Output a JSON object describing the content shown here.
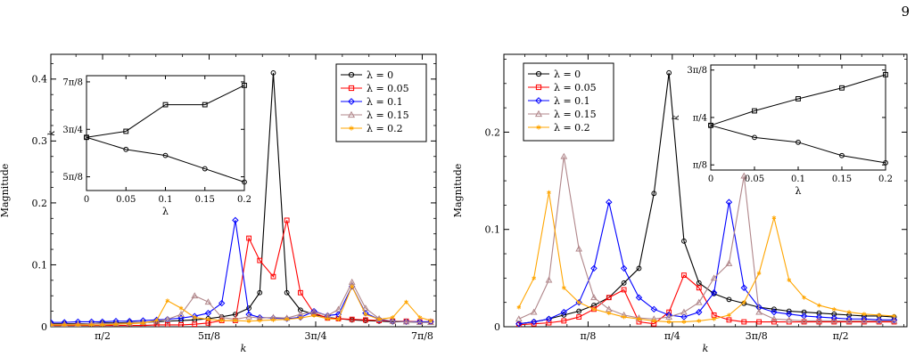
{
  "page": {
    "number": "9"
  },
  "colors": {
    "l0": "#000000",
    "l005": "#ff0000",
    "l01": "#0000ff",
    "l015": "#b0868a",
    "l02": "#ffa500"
  },
  "chart_data": [
    {
      "type": "line",
      "xlabel": "k",
      "ylabel": "Magnitude",
      "xlim": [
        1.38,
        2.8
      ],
      "ylim": [
        0,
        0.44
      ],
      "xticks": [
        {
          "v": 1.5708,
          "label": "π/2"
        },
        {
          "v": 1.9635,
          "label": "5π/8"
        },
        {
          "v": 2.3562,
          "label": "3π/4"
        },
        {
          "v": 2.7489,
          "label": "7π/8"
        }
      ],
      "yticks": [
        {
          "v": 0,
          "label": "0"
        },
        {
          "v": 0.1,
          "label": "0.1"
        },
        {
          "v": 0.2,
          "label": "0.2"
        },
        {
          "v": 0.3,
          "label": "0.3"
        },
        {
          "v": 0.4,
          "label": "0.4"
        }
      ],
      "legend_position": "top-right",
      "series": [
        {
          "name": "λ = 0",
          "color": "#000000",
          "marker": "circle",
          "x": [
            1.38,
            1.43,
            1.48,
            1.53,
            1.57,
            1.62,
            1.67,
            1.72,
            1.77,
            1.81,
            1.86,
            1.91,
            1.96,
            2.01,
            2.06,
            2.11,
            2.15,
            2.2,
            2.25,
            2.3,
            2.35,
            2.4,
            2.44,
            2.49,
            2.54,
            2.59,
            2.64,
            2.69,
            2.74,
            2.78
          ],
          "y": [
            0.005,
            0.005,
            0.005,
            0.005,
            0.006,
            0.006,
            0.007,
            0.007,
            0.008,
            0.009,
            0.01,
            0.011,
            0.013,
            0.016,
            0.02,
            0.03,
            0.055,
            0.41,
            0.055,
            0.027,
            0.02,
            0.015,
            0.013,
            0.011,
            0.01,
            0.009,
            0.008,
            0.008,
            0.007,
            0.007
          ]
        },
        {
          "name": "λ = 0.05",
          "color": "#ff0000",
          "marker": "square",
          "x": [
            1.38,
            1.43,
            1.48,
            1.53,
            1.57,
            1.62,
            1.67,
            1.72,
            1.77,
            1.81,
            1.86,
            1.91,
            1.96,
            2.01,
            2.06,
            2.11,
            2.15,
            2.2,
            2.25,
            2.3,
            2.35,
            2.4,
            2.44,
            2.49,
            2.54,
            2.59,
            2.64,
            2.69,
            2.74,
            2.78
          ],
          "y": [
            0.002,
            0.002,
            0.002,
            0.002,
            0.002,
            0.002,
            0.002,
            0.002,
            0.003,
            0.003,
            0.003,
            0.004,
            0.006,
            0.01,
            0.01,
            0.143,
            0.107,
            0.081,
            0.172,
            0.055,
            0.022,
            0.014,
            0.013,
            0.012,
            0.011,
            0.01,
            0.009,
            0.009,
            0.008,
            0.008
          ]
        },
        {
          "name": "λ = 0.1",
          "color": "#0000ff",
          "marker": "diamond",
          "x": [
            1.38,
            1.43,
            1.48,
            1.53,
            1.57,
            1.62,
            1.67,
            1.72,
            1.77,
            1.81,
            1.86,
            1.91,
            1.96,
            2.01,
            2.06,
            2.11,
            2.15,
            2.2,
            2.25,
            2.3,
            2.35,
            2.4,
            2.44,
            2.49,
            2.54,
            2.59,
            2.64,
            2.69,
            2.74,
            2.78
          ],
          "y": [
            0.007,
            0.007,
            0.008,
            0.008,
            0.008,
            0.009,
            0.009,
            0.01,
            0.011,
            0.012,
            0.014,
            0.017,
            0.022,
            0.038,
            0.172,
            0.02,
            0.015,
            0.014,
            0.013,
            0.015,
            0.025,
            0.018,
            0.02,
            0.065,
            0.022,
            0.012,
            0.009,
            0.008,
            0.008,
            0.008
          ]
        },
        {
          "name": "λ = 0.15",
          "color": "#b0868a",
          "marker": "triangle",
          "x": [
            1.38,
            1.43,
            1.48,
            1.53,
            1.57,
            1.62,
            1.67,
            1.72,
            1.77,
            1.81,
            1.86,
            1.91,
            1.96,
            2.01,
            2.06,
            2.11,
            2.15,
            2.2,
            2.25,
            2.3,
            2.35,
            2.4,
            2.44,
            2.49,
            2.54,
            2.59,
            2.64,
            2.69,
            2.74,
            2.78
          ],
          "y": [
            0.004,
            0.004,
            0.004,
            0.005,
            0.005,
            0.005,
            0.006,
            0.007,
            0.009,
            0.012,
            0.02,
            0.05,
            0.04,
            0.015,
            0.012,
            0.016,
            0.014,
            0.015,
            0.014,
            0.02,
            0.024,
            0.018,
            0.028,
            0.072,
            0.03,
            0.013,
            0.009,
            0.008,
            0.007,
            0.007
          ]
        },
        {
          "name": "λ = 0.2",
          "color": "#ffa500",
          "marker": "star",
          "x": [
            1.38,
            1.43,
            1.48,
            1.53,
            1.57,
            1.62,
            1.67,
            1.72,
            1.77,
            1.81,
            1.86,
            1.91,
            1.96,
            2.01,
            2.06,
            2.11,
            2.15,
            2.2,
            2.25,
            2.3,
            2.35,
            2.4,
            2.44,
            2.49,
            2.54,
            2.59,
            2.64,
            2.69,
            2.74,
            2.78
          ],
          "y": [
            0.003,
            0.003,
            0.003,
            0.003,
            0.003,
            0.004,
            0.005,
            0.006,
            0.01,
            0.042,
            0.03,
            0.015,
            0.012,
            0.01,
            0.01,
            0.009,
            0.01,
            0.011,
            0.012,
            0.014,
            0.018,
            0.013,
            0.012,
            0.065,
            0.02,
            0.012,
            0.015,
            0.04,
            0.015,
            0.01
          ]
        }
      ],
      "inset": {
        "xlabel": "λ",
        "ylabel": "k",
        "xlim": [
          0,
          0.2
        ],
        "ylim": [
          1.85,
          2.8
        ],
        "xticks": [
          {
            "v": 0,
            "label": "0"
          },
          {
            "v": 0.05,
            "label": "0.05"
          },
          {
            "v": 0.1,
            "label": "0.1"
          },
          {
            "v": 0.15,
            "label": "0.15"
          },
          {
            "v": 0.2,
            "label": "0.2"
          }
        ],
        "yticks": [
          {
            "v": 1.9635,
            "label": "5π/8"
          },
          {
            "v": 2.3562,
            "label": "3π/4"
          },
          {
            "v": 2.7489,
            "label": "7π/8"
          }
        ],
        "series": [
          {
            "marker": "square",
            "x": [
              0,
              0.05,
              0.1,
              0.15,
              0.2
            ],
            "y": [
              2.29,
              2.34,
              2.56,
              2.56,
              2.72
            ]
          },
          {
            "marker": "circle",
            "x": [
              0,
              0.05,
              0.1,
              0.15,
              0.2
            ],
            "y": [
              2.29,
              2.19,
              2.14,
              2.03,
              1.92
            ]
          }
        ]
      }
    },
    {
      "type": "line",
      "xlabel": "k",
      "ylabel": "Magnitude",
      "xlim": [
        0,
        1.88
      ],
      "ylim": [
        0,
        0.28
      ],
      "xticks": [
        {
          "v": 0.3927,
          "label": "π/8"
        },
        {
          "v": 0.7854,
          "label": "π/4"
        },
        {
          "v": 1.1781,
          "label": "3π/8"
        },
        {
          "v": 1.5708,
          "label": "π/2"
        }
      ],
      "yticks": [
        {
          "v": 0,
          "label": "0"
        },
        {
          "v": 0.1,
          "label": "0.1"
        },
        {
          "v": 0.2,
          "label": "0.2"
        }
      ],
      "legend_position": "top-left",
      "series": [
        {
          "name": "λ = 0",
          "color": "#000000",
          "marker": "circle",
          "x": [
            0.07,
            0.14,
            0.21,
            0.28,
            0.35,
            0.42,
            0.49,
            0.56,
            0.63,
            0.7,
            0.77,
            0.84,
            0.91,
            0.98,
            1.05,
            1.12,
            1.19,
            1.26,
            1.33,
            1.4,
            1.47,
            1.54,
            1.61,
            1.68,
            1.75,
            1.82
          ],
          "y": [
            0.003,
            0.005,
            0.008,
            0.012,
            0.016,
            0.022,
            0.03,
            0.045,
            0.06,
            0.137,
            0.261,
            0.088,
            0.045,
            0.034,
            0.028,
            0.024,
            0.02,
            0.018,
            0.016,
            0.015,
            0.014,
            0.013,
            0.012,
            0.011,
            0.011,
            0.01
          ]
        },
        {
          "name": "λ = 0.05",
          "color": "#ff0000",
          "marker": "square",
          "x": [
            0.07,
            0.14,
            0.21,
            0.28,
            0.35,
            0.42,
            0.49,
            0.56,
            0.63,
            0.7,
            0.77,
            0.84,
            0.91,
            0.98,
            1.05,
            1.12,
            1.19,
            1.26,
            1.33,
            1.4,
            1.47,
            1.54,
            1.61,
            1.68,
            1.75,
            1.82
          ],
          "y": [
            0.002,
            0.003,
            0.004,
            0.006,
            0.01,
            0.018,
            0.03,
            0.038,
            0.005,
            0.003,
            0.015,
            0.053,
            0.04,
            0.012,
            0.007,
            0.005,
            0.005,
            0.005,
            0.005,
            0.005,
            0.005,
            0.005,
            0.005,
            0.005,
            0.005,
            0.005
          ]
        },
        {
          "name": "λ = 0.1",
          "color": "#0000ff",
          "marker": "diamond",
          "x": [
            0.07,
            0.14,
            0.21,
            0.28,
            0.35,
            0.42,
            0.49,
            0.56,
            0.63,
            0.7,
            0.77,
            0.84,
            0.91,
            0.98,
            1.05,
            1.12,
            1.19,
            1.26,
            1.33,
            1.4,
            1.47,
            1.54,
            1.61,
            1.68,
            1.75,
            1.82
          ],
          "y": [
            0.003,
            0.005,
            0.008,
            0.015,
            0.025,
            0.06,
            0.128,
            0.06,
            0.03,
            0.018,
            0.012,
            0.01,
            0.015,
            0.035,
            0.128,
            0.04,
            0.02,
            0.015,
            0.013,
            0.011,
            0.01,
            0.009,
            0.008,
            0.008,
            0.007,
            0.007
          ]
        },
        {
          "name": "λ = 0.15",
          "color": "#b0868a",
          "marker": "triangle",
          "x": [
            0.07,
            0.14,
            0.21,
            0.28,
            0.35,
            0.42,
            0.49,
            0.56,
            0.63,
            0.7,
            0.77,
            0.84,
            0.91,
            0.98,
            1.05,
            1.12,
            1.19,
            1.26,
            1.33,
            1.4,
            1.47,
            1.54,
            1.61,
            1.68,
            1.75,
            1.82
          ],
          "y": [
            0.008,
            0.015,
            0.048,
            0.175,
            0.08,
            0.03,
            0.018,
            0.012,
            0.009,
            0.008,
            0.01,
            0.015,
            0.025,
            0.05,
            0.065,
            0.155,
            0.015,
            0.008,
            0.007,
            0.006,
            0.006,
            0.006,
            0.006,
            0.006,
            0.006,
            0.006
          ]
        },
        {
          "name": "λ = 0.2",
          "color": "#ffa500",
          "marker": "star",
          "x": [
            0.07,
            0.14,
            0.21,
            0.28,
            0.35,
            0.42,
            0.49,
            0.56,
            0.63,
            0.7,
            0.77,
            0.84,
            0.91,
            0.98,
            1.05,
            1.12,
            1.19,
            1.26,
            1.33,
            1.4,
            1.47,
            1.54,
            1.61,
            1.68,
            1.75,
            1.82
          ],
          "y": [
            0.02,
            0.05,
            0.138,
            0.04,
            0.025,
            0.018,
            0.014,
            0.01,
            0.008,
            0.006,
            0.005,
            0.005,
            0.006,
            0.008,
            0.012,
            0.025,
            0.055,
            0.112,
            0.048,
            0.03,
            0.022,
            0.018,
            0.015,
            0.013,
            0.012,
            0.011
          ]
        }
      ],
      "inset": {
        "xlabel": "λ",
        "ylabel": "k",
        "xlim": [
          0,
          0.2
        ],
        "ylim": [
          0.35,
          1.22
        ],
        "xticks": [
          {
            "v": 0,
            "label": "0"
          },
          {
            "v": 0.05,
            "label": "0.05"
          },
          {
            "v": 0.1,
            "label": "0.1"
          },
          {
            "v": 0.15,
            "label": "0.15"
          },
          {
            "v": 0.2,
            "label": "0.2"
          }
        ],
        "yticks": [
          {
            "v": 0.3927,
            "label": "π/8"
          },
          {
            "v": 0.7854,
            "label": "π/4"
          },
          {
            "v": 1.1781,
            "label": "3π/8"
          }
        ],
        "series": [
          {
            "marker": "square",
            "x": [
              0,
              0.05,
              0.1,
              0.15,
              0.2
            ],
            "y": [
              0.72,
              0.84,
              0.94,
              1.03,
              1.14
            ]
          },
          {
            "marker": "circle",
            "x": [
              0,
              0.05,
              0.1,
              0.15,
              0.2
            ],
            "y": [
              0.72,
              0.62,
              0.58,
              0.47,
              0.41
            ]
          }
        ]
      }
    }
  ]
}
